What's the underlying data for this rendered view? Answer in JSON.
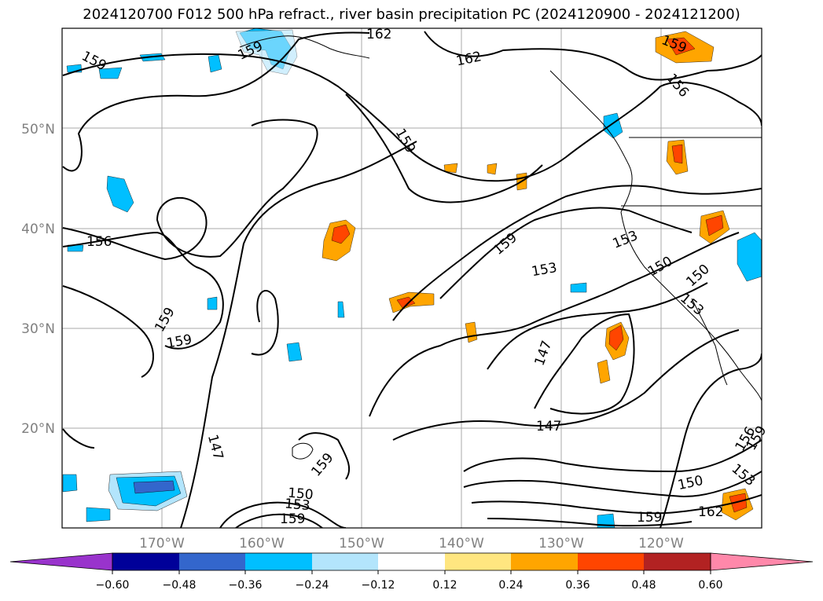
{
  "title": "2024120700 F012 500 hPa refract., river basin precipitation PC (2024120900 - 2024121200)",
  "map": {
    "lat_labels": [
      "50°N",
      "40°N",
      "30°N",
      "20°N"
    ],
    "lon_labels": [
      "170°W",
      "160°W",
      "150°W",
      "140°W",
      "130°W",
      "120°W"
    ],
    "grid": true
  },
  "contour_labels": [
    "159",
    "162",
    "159",
    "162",
    "159",
    "159",
    "156",
    "159",
    "159",
    "156",
    "153",
    "159",
    "153",
    "150",
    "150",
    "153",
    "147",
    "147",
    "147",
    "159",
    "150",
    "153",
    "159",
    "150",
    "159",
    "162",
    "156",
    "159",
    "153"
  ],
  "colorbar": {
    "colors": [
      "#9933cc",
      "#000099",
      "#3366cc",
      "#00bfff",
      "#b3e5fc",
      "#ffffff",
      "#ffe680",
      "#ffa500",
      "#ff4500",
      "#b22222",
      "#ff88aa"
    ],
    "tick_labels": [
      "−0.60",
      "−0.48",
      "−0.36",
      "−0.24",
      "−0.12",
      "0.12",
      "0.24",
      "0.36",
      "0.48",
      "0.60"
    ]
  }
}
